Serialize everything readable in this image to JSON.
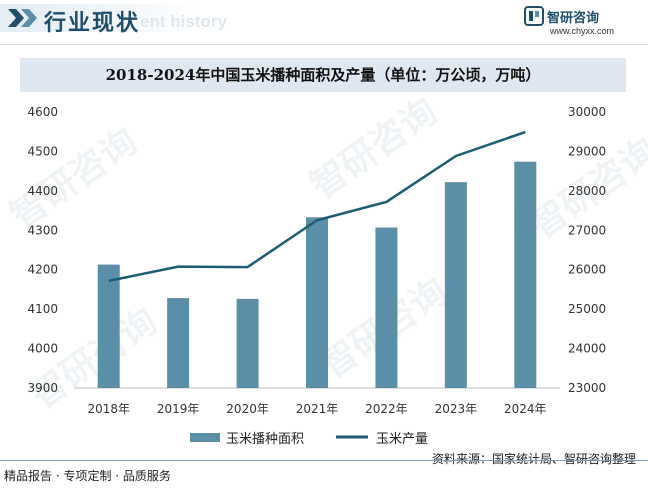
{
  "header": {
    "title": "行业现状",
    "ghost_text": "ent history",
    "logo_name": "智研咨询",
    "logo_url": "www.chyxx.com"
  },
  "watermark_text": "智研咨询",
  "chart_data": {
    "type": "bar",
    "title": "2018-2024年中国玉米播种面积及产量（单位：万公顷，万吨）",
    "categories": [
      "2018年",
      "2019年",
      "2020年",
      "2021年",
      "2022年",
      "2023年",
      "2024年"
    ],
    "series": [
      {
        "name": "玉米播种面积",
        "type": "bar",
        "axis": "left",
        "color": "#5b8fa8",
        "values": [
          4213,
          4128,
          4126,
          4333,
          4307,
          4422,
          4474
        ]
      },
      {
        "name": "玉米产量",
        "type": "line",
        "axis": "right",
        "color": "#1d5d74",
        "values": [
          25717,
          26078,
          26067,
          27255,
          27720,
          28884,
          29492
        ]
      }
    ],
    "y_left": {
      "min": 3900,
      "max": 4600,
      "ticks": [
        3900,
        4000,
        4100,
        4200,
        4300,
        4400,
        4500,
        4600
      ]
    },
    "y_right": {
      "min": 23000,
      "max": 30000,
      "ticks": [
        23000,
        24000,
        25000,
        26000,
        27000,
        28000,
        29000,
        30000
      ]
    },
    "grid": false,
    "legend_position": "bottom"
  },
  "footer": {
    "left": "精品报告 · 专项定制 · 品质服务",
    "source": "资料来源：国家统计局、智研咨询整理"
  }
}
